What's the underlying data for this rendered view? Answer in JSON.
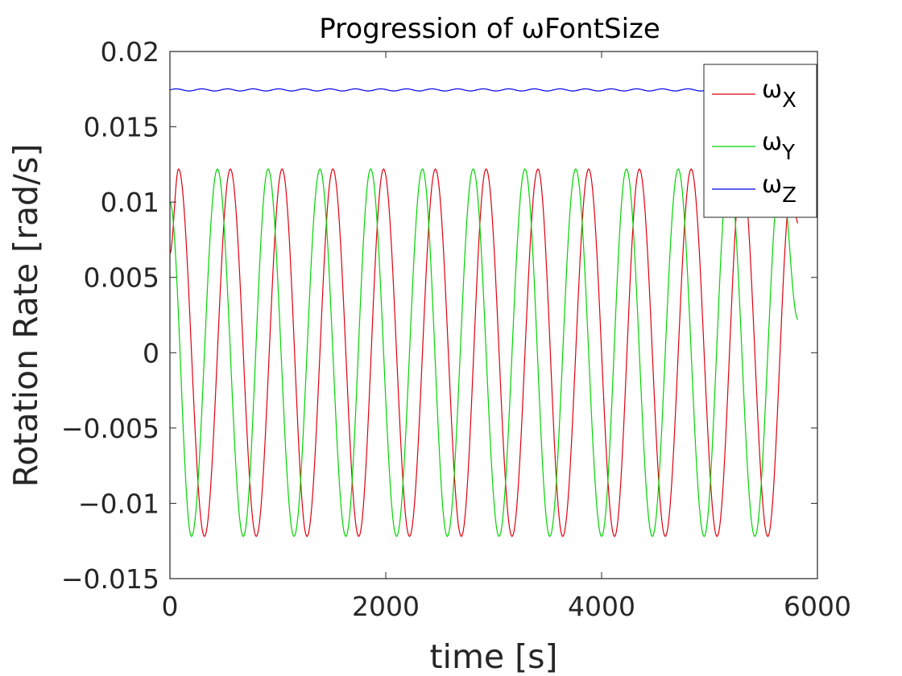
{
  "chart_data": {
    "type": "line",
    "title": "Progression of ωFontSize",
    "xlabel": "time [s]",
    "ylabel": "Rotation Rate [rad/s]",
    "xlim": [
      0,
      6000
    ],
    "ylim": [
      -0.015,
      0.02
    ],
    "x_ticks": [
      0,
      2000,
      4000,
      6000
    ],
    "x_tick_labels": [
      "0",
      "2000",
      "4000",
      "6000"
    ],
    "y_ticks": [
      -0.015,
      -0.01,
      -0.005,
      0,
      0.005,
      0.01,
      0.015,
      0.02
    ],
    "y_tick_labels": [
      "−0.015",
      "−0.01",
      "−0.005",
      "0",
      "0.005",
      "0.01",
      "0.015",
      "0.02"
    ],
    "grid": false,
    "legend_position": "top-right",
    "x_range": [
      0,
      5820
    ],
    "series": [
      {
        "name": "ωX",
        "legend_symbol": "ω",
        "legend_subscript": "X",
        "color": "#e0000f",
        "description": "sinusoid, amplitude 0.0122 rad/s, period ~473 s, starts near 0.0066 rising",
        "points": [
          [
            0,
            0.0066
          ],
          [
            80,
            0.0122
          ],
          [
            320,
            -0.0122
          ],
          [
            560,
            0.0122
          ],
          [
            800,
            -0.0122
          ],
          [
            1040,
            0.0122
          ],
          [
            1270,
            -0.0122
          ],
          [
            1510,
            0.0122
          ],
          [
            1750,
            -0.0122
          ],
          [
            1980,
            0.0122
          ],
          [
            2220,
            -0.0122
          ],
          [
            2460,
            0.0122
          ],
          [
            2700,
            -0.0122
          ],
          [
            2930,
            0.0122
          ],
          [
            3170,
            -0.0122
          ],
          [
            3410,
            0.0122
          ],
          [
            3640,
            -0.0122
          ],
          [
            3880,
            0.0122
          ],
          [
            4120,
            -0.0122
          ],
          [
            4350,
            0.0122
          ],
          [
            4590,
            -0.0122
          ],
          [
            4830,
            0.0122
          ],
          [
            5070,
            -0.0122
          ],
          [
            5300,
            0.0122
          ],
          [
            5540,
            -0.0122
          ],
          [
            5760,
            0.011
          ],
          [
            5820,
            0.0086
          ]
        ]
      },
      {
        "name": "ωY",
        "legend_symbol": "ω",
        "legend_subscript": "Y",
        "color": "#00d400",
        "description": "sinusoid, amplitude 0.0122 rad/s, period ~473 s, lagging ωX by a quarter period",
        "points": [
          [
            0,
            0.01
          ],
          [
            200,
            -0.0122
          ],
          [
            440,
            0.0122
          ],
          [
            680,
            -0.0122
          ],
          [
            910,
            0.0122
          ],
          [
            1150,
            -0.0122
          ],
          [
            1390,
            0.0122
          ],
          [
            1630,
            -0.0122
          ],
          [
            1860,
            0.0122
          ],
          [
            2100,
            -0.0122
          ],
          [
            2340,
            0.0122
          ],
          [
            2570,
            -0.0122
          ],
          [
            2810,
            0.0122
          ],
          [
            3050,
            -0.0122
          ],
          [
            3290,
            0.0122
          ],
          [
            3520,
            -0.0122
          ],
          [
            3760,
            0.0122
          ],
          [
            4000,
            -0.0122
          ],
          [
            4230,
            0.0122
          ],
          [
            4470,
            -0.0122
          ],
          [
            4710,
            0.0122
          ],
          [
            4950,
            -0.0122
          ],
          [
            5180,
            0.0122
          ],
          [
            5420,
            -0.0122
          ],
          [
            5660,
            0.0122
          ],
          [
            5820,
            0.0022
          ]
        ]
      },
      {
        "name": "ωZ",
        "legend_symbol": "ω",
        "legend_subscript": "Z",
        "color": "#0000e6",
        "description": "nearly constant ~0.01745 rad/s with a tiny ripple",
        "mean": 0.01745,
        "ripple": 7e-05,
        "period": 237
      }
    ]
  }
}
